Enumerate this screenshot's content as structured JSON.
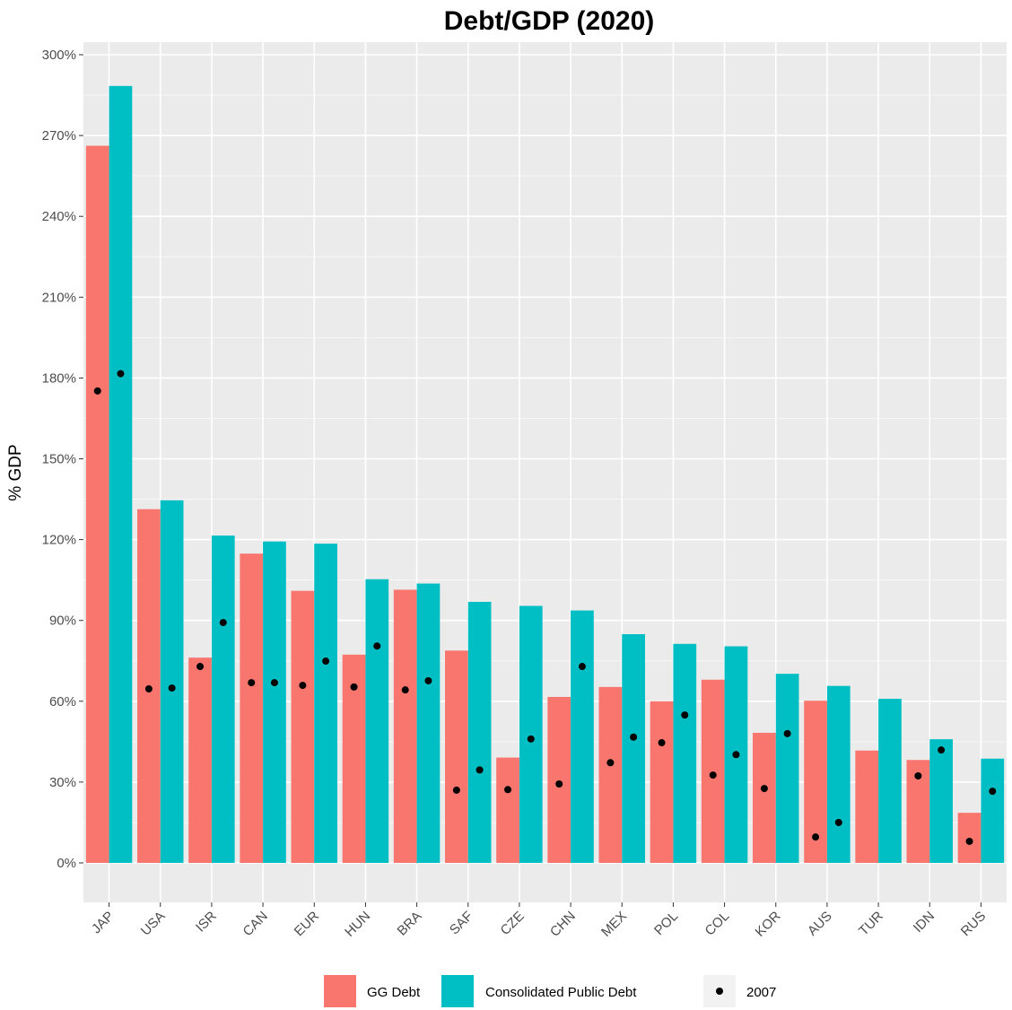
{
  "chart_data": {
    "type": "bar",
    "title": "Debt/GDP (2020)",
    "xlabel": "",
    "ylabel": "% GDP",
    "ylim": [
      -10,
      305
    ],
    "yticks": [
      0,
      30,
      60,
      90,
      120,
      150,
      180,
      210,
      240,
      270,
      300
    ],
    "ytick_labels": [
      "0%",
      "30%",
      "60%",
      "90%",
      "120%",
      "150%",
      "180%",
      "210%",
      "240%",
      "270%",
      "300%"
    ],
    "categories": [
      "JAP",
      "USA",
      "ISR",
      "CAN",
      "EUR",
      "HUN",
      "BRA",
      "SAF",
      "CZE",
      "CHN",
      "MEX",
      "POL",
      "COL",
      "KOR",
      "AUS",
      "TUR",
      "IDN",
      "RUS"
    ],
    "series": [
      {
        "name": "GG Debt",
        "color": "#F8766D",
        "values": [
          266.2,
          131.3,
          76.2,
          114.8,
          101.0,
          77.3,
          101.4,
          78.8,
          39.1,
          61.6,
          65.3,
          60.0,
          68.0,
          48.3,
          60.2,
          41.7,
          38.2,
          18.6
        ],
        "points_2007": [
          175.2,
          64.6,
          72.9,
          66.9,
          65.9,
          65.3,
          64.2,
          27.0,
          27.2,
          29.3,
          37.2,
          44.6,
          32.6,
          27.6,
          9.6,
          null,
          32.3,
          8.0
        ]
      },
      {
        "name": "Consolidated Public Debt",
        "color": "#00BFC4",
        "values": [
          288.4,
          134.6,
          121.5,
          119.3,
          118.5,
          105.3,
          103.7,
          96.9,
          95.4,
          93.7,
          84.9,
          81.3,
          80.4,
          70.2,
          65.7,
          60.9,
          45.9,
          38.7
        ],
        "points_2007": [
          181.6,
          64.9,
          89.2,
          66.9,
          74.9,
          80.5,
          67.6,
          34.5,
          46.0,
          72.9,
          46.7,
          54.9,
          40.2,
          48.0,
          15.0,
          null,
          41.9,
          26.6
        ]
      }
    ],
    "points_label": "2007",
    "grid": true,
    "legend_position": "bottom"
  }
}
